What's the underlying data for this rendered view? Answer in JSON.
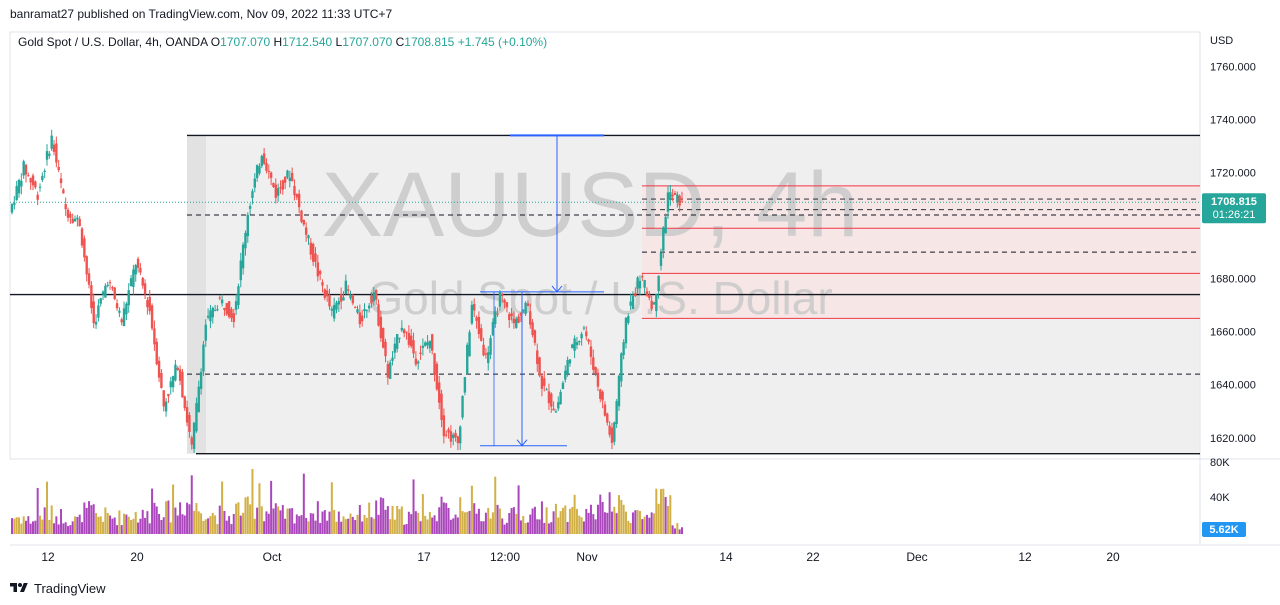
{
  "header": {
    "published": "banramat27 published on TradingView.com, Nov 09, 2022 11:33 UTC+7"
  },
  "legend": {
    "symbol": "Gold Spot / U.S. Dollar, 4h, OANDA",
    "o_label": "O",
    "o_value": "1707.070",
    "h_label": "H",
    "h_value": "1712.540",
    "l_label": "L",
    "l_value": "1707.070",
    "c_label": "C",
    "c_value": "1708.815",
    "change": "+1.745 (+0.10%)"
  },
  "watermark": {
    "ticker": "XAUUSD, 4h",
    "name": "Gold Spot / U.S. Dollar"
  },
  "price_axis": {
    "currency": "USD",
    "ticks": [
      "1760.000",
      "1740.000",
      "1720.000",
      "1680.000",
      "1660.000",
      "1640.000",
      "1620.000"
    ],
    "last_price": "1708.815",
    "countdown": "01:26:21"
  },
  "volume_axis": {
    "ticks": [
      "80K",
      "40K"
    ],
    "last_volume": "5.62K"
  },
  "time_axis": {
    "ticks": [
      "12",
      "20",
      "Oct",
      "17",
      "12:00",
      "Nov",
      "14",
      "22",
      "Dec",
      "12",
      "20"
    ]
  },
  "footer": {
    "brand": "TradingView"
  },
  "colors": {
    "up": "#26a69a",
    "down": "#ef5350",
    "vol_purple": "#9c27b0",
    "vol_gold": "#c9a227",
    "price_tag": "#26a69a",
    "volume_tag": "#2196f3",
    "accent_blue": "#2962ff",
    "level_red": "#f23645"
  },
  "chart_data": {
    "type": "candlestick",
    "symbol": "XAUUSD",
    "timeframe": "4h",
    "ylim": [
      1612,
      1773
    ],
    "last_close": 1708.815,
    "segments": [
      {
        "from": 1705,
        "to": 1722,
        "vol": 1.2
      },
      {
        "from": 1722,
        "to": 1712,
        "vol": 1.0
      },
      {
        "from": 1712,
        "to": 1733,
        "vol": 1.4
      },
      {
        "from": 1733,
        "to": 1706,
        "vol": 1.3
      },
      {
        "from": 1706,
        "to": 1701,
        "vol": 1.0
      },
      {
        "from": 1701,
        "to": 1663,
        "vol": 1.6
      },
      {
        "from": 1663,
        "to": 1680,
        "vol": 1.3
      },
      {
        "from": 1680,
        "to": 1664,
        "vol": 1.2
      },
      {
        "from": 1664,
        "to": 1686,
        "vol": 1.4
      },
      {
        "from": 1686,
        "to": 1668,
        "vol": 1.3
      },
      {
        "from": 1668,
        "to": 1632,
        "vol": 2.0
      },
      {
        "from": 1632,
        "to": 1648,
        "vol": 1.6
      },
      {
        "from": 1648,
        "to": 1616,
        "vol": 2.2
      },
      {
        "from": 1616,
        "to": 1663,
        "vol": 1.8
      },
      {
        "from": 1663,
        "to": 1672,
        "vol": 1.4
      },
      {
        "from": 1672,
        "to": 1666,
        "vol": 1.2
      },
      {
        "from": 1666,
        "to": 1705,
        "vol": 1.8
      },
      {
        "from": 1705,
        "to": 1728,
        "vol": 2.0
      },
      {
        "from": 1728,
        "to": 1712,
        "vol": 1.6
      },
      {
        "from": 1712,
        "to": 1720,
        "vol": 1.4
      },
      {
        "from": 1720,
        "to": 1700,
        "vol": 1.5
      },
      {
        "from": 1700,
        "to": 1682,
        "vol": 1.6
      },
      {
        "from": 1682,
        "to": 1667,
        "vol": 1.5
      },
      {
        "from": 1667,
        "to": 1677,
        "vol": 1.3
      },
      {
        "from": 1677,
        "to": 1664,
        "vol": 1.4
      },
      {
        "from": 1664,
        "to": 1675,
        "vol": 1.6
      },
      {
        "from": 1675,
        "to": 1644,
        "vol": 1.8
      },
      {
        "from": 1644,
        "to": 1663,
        "vol": 1.4
      },
      {
        "from": 1663,
        "to": 1650,
        "vol": 1.3
      },
      {
        "from": 1650,
        "to": 1657,
        "vol": 1.2
      },
      {
        "from": 1657,
        "to": 1623,
        "vol": 1.8
      },
      {
        "from": 1623,
        "to": 1618,
        "vol": 1.6
      },
      {
        "from": 1618,
        "to": 1670,
        "vol": 2.4
      },
      {
        "from": 1670,
        "to": 1650,
        "vol": 1.5
      },
      {
        "from": 1650,
        "to": 1673,
        "vol": 1.6
      },
      {
        "from": 1673,
        "to": 1663,
        "vol": 1.3
      },
      {
        "from": 1663,
        "to": 1670,
        "vol": 1.2
      },
      {
        "from": 1670,
        "to": 1640,
        "vol": 1.6
      },
      {
        "from": 1640,
        "to": 1630,
        "vol": 1.5
      },
      {
        "from": 1630,
        "to": 1652,
        "vol": 1.4
      },
      {
        "from": 1652,
        "to": 1662,
        "vol": 1.3
      },
      {
        "from": 1662,
        "to": 1640,
        "vol": 1.6
      },
      {
        "from": 1640,
        "to": 1618,
        "vol": 2.0
      },
      {
        "from": 1618,
        "to": 1665,
        "vol": 1.9
      },
      {
        "from": 1665,
        "to": 1681,
        "vol": 1.5
      },
      {
        "from": 1681,
        "to": 1669,
        "vol": 1.2
      },
      {
        "from": 1669,
        "to": 1712,
        "vol": 2.2
      },
      {
        "from": 1712,
        "to": 1708.8,
        "vol": 0.6
      }
    ],
    "levels": {
      "solid_black": [
        1734,
        1674,
        1614
      ],
      "dashed_black_left": [
        1704,
        1644
      ],
      "red_lines": [
        1715,
        1699,
        1682,
        1665
      ],
      "dashed_black_right": [
        1710,
        1706,
        1690,
        1674
      ],
      "dotted_current": 1708.815
    },
    "volume_scale_max": 80000
  }
}
